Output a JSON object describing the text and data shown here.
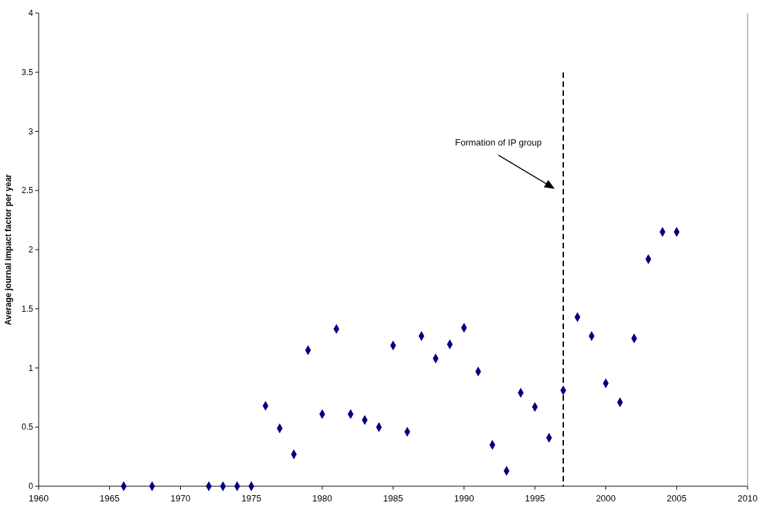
{
  "chart_data": {
    "type": "scatter",
    "ylabel": "Average journal impact factor per year",
    "x": [
      1966,
      1968,
      1972,
      1973,
      1974,
      1975,
      1976,
      1977,
      1978,
      1979,
      1980,
      1981,
      1982,
      1983,
      1984,
      1985,
      1986,
      1987,
      1988,
      1989,
      1990,
      1991,
      1992,
      1993,
      1994,
      1995,
      1996,
      1997,
      1998,
      1999,
      2000,
      2001,
      2002,
      2003,
      2004,
      2005
    ],
    "series": [
      {
        "color": "#000080",
        "values": [
          0,
          0,
          0,
          0,
          0,
          0,
          0.68,
          0.49,
          0.27,
          1.15,
          0.61,
          1.33,
          0.61,
          0.56,
          0.5,
          1.19,
          0.46,
          1.27,
          1.08,
          1.2,
          1.34,
          0.97,
          0.35,
          0.13,
          0.79,
          0.67,
          0.41,
          0.81,
          1.43,
          1.27,
          0.87,
          0.71,
          1.25,
          1.92,
          2.15,
          2.15
        ]
      }
    ],
    "xlim": [
      1960,
      2010
    ],
    "xticks": [
      1960,
      1965,
      1970,
      1975,
      1980,
      1985,
      1990,
      1995,
      2000,
      2005,
      2010
    ],
    "ylim": [
      0,
      4
    ],
    "yticks": [
      0,
      0.5,
      1,
      1.5,
      2,
      2.5,
      3,
      3.5,
      4
    ],
    "ref_lines": [
      {
        "axis": "x",
        "value": 1997,
        "color": "#000000",
        "line_style": "dashed"
      }
    ],
    "annotations": [
      "Formation of IP group"
    ],
    "marker": "diamond",
    "grid": false
  }
}
